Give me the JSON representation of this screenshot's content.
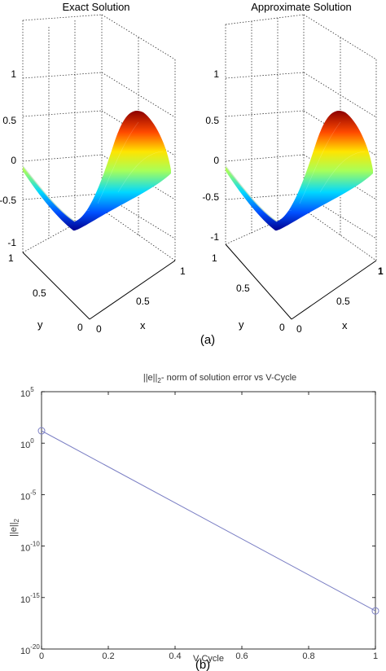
{
  "panel_a": {
    "caption": "(a)",
    "plots": [
      {
        "title": "Exact Solution",
        "z_ticks": [
          "1",
          "0.5",
          "0",
          "-0.5",
          "-1"
        ],
        "y_ticks": [
          "1",
          "0.5",
          "0"
        ],
        "x_ticks": [
          "0",
          "0.5",
          "1"
        ],
        "y_label": "y",
        "x_label": "x"
      },
      {
        "title": "Approximate Solution",
        "z_ticks": [
          "1",
          "0.5",
          "0",
          "-0.5",
          "-1"
        ],
        "y_ticks": [
          "1",
          "0.5",
          "0"
        ],
        "x_ticks": [
          "0",
          "0.5",
          "1"
        ],
        "y_label": "y",
        "x_label": "x"
      }
    ]
  },
  "panel_b": {
    "caption": "(b)"
  },
  "chart_data": [
    {
      "type": "surface",
      "title": "Exact Solution",
      "xlabel": "x",
      "ylabel": "y",
      "xlim": [
        0,
        1
      ],
      "ylim": [
        0,
        1
      ],
      "zlim": [
        -1,
        1
      ],
      "colormap": "jet"
    },
    {
      "type": "surface",
      "title": "Approximate Solution",
      "xlabel": "x",
      "ylabel": "y",
      "xlim": [
        0,
        1
      ],
      "ylim": [
        0,
        1
      ],
      "zlim": [
        -1,
        1
      ],
      "colormap": "jet"
    },
    {
      "type": "line",
      "title": "||e||2- norm of solution error vs V-Cycle",
      "title_parts": [
        "||e||",
        "2",
        "- norm of solution error vs V-Cycle"
      ],
      "xlabel": "V-Cycle",
      "ylabel_parts": [
        "||e||",
        "2"
      ],
      "x_ticks": [
        "0",
        "0.2",
        "0.4",
        "0.6",
        "0.8",
        "1"
      ],
      "y_ticks": [
        {
          "base": "10",
          "exp": "5",
          "value": 5
        },
        {
          "base": "10",
          "exp": "0",
          "value": 0
        },
        {
          "base": "10",
          "exp": "-5",
          "value": -5
        },
        {
          "base": "10",
          "exp": "-10",
          "value": -10
        },
        {
          "base": "10",
          "exp": "-15",
          "value": -15
        },
        {
          "base": "10",
          "exp": "-20",
          "value": -20
        }
      ],
      "y_scale": "log",
      "xlim": [
        0,
        1
      ],
      "ylim_log10": [
        -20,
        5
      ],
      "grid": false,
      "series": [
        {
          "x": [
            0,
            1
          ],
          "log10_y": [
            1.2,
            -16.3
          ],
          "marker": "circle",
          "color": "#7b7fc4"
        }
      ]
    }
  ]
}
